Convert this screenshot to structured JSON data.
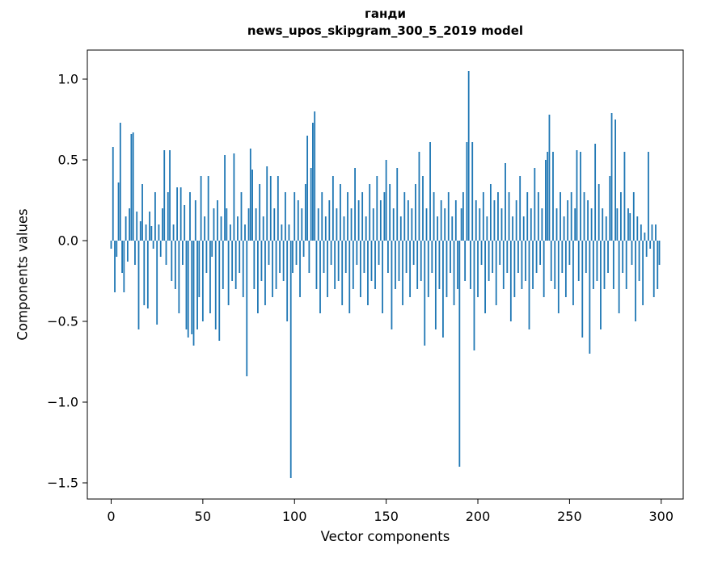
{
  "chart_data": {
    "type": "bar",
    "title_line1": "ганди",
    "title_line2": "news_upos_skipgram_300_5_2019 model",
    "xlabel": "Vector components",
    "ylabel": "Components values",
    "bar_color": "#1f77b4",
    "xlim": [
      -13,
      312
    ],
    "ylim": [
      -1.6,
      1.18
    ],
    "xticks": [
      0,
      50,
      100,
      150,
      200,
      250,
      300
    ],
    "yticks": [
      -1.5,
      -1.0,
      -0.5,
      0.0,
      0.5,
      1.0
    ],
    "grid": false,
    "legend": "none",
    "values": [
      -0.05,
      0.58,
      -0.32,
      -0.1,
      0.36,
      0.73,
      -0.2,
      -0.32,
      0.15,
      -0.13,
      0.2,
      0.66,
      0.67,
      -0.15,
      0.18,
      -0.55,
      0.12,
      0.35,
      -0.4,
      0.1,
      -0.42,
      0.18,
      0.09,
      -0.05,
      0.3,
      -0.52,
      0.1,
      -0.1,
      0.2,
      0.56,
      -0.15,
      0.3,
      0.56,
      -0.25,
      0.1,
      -0.3,
      0.33,
      -0.45,
      0.33,
      -0.15,
      0.22,
      -0.55,
      -0.6,
      0.3,
      -0.58,
      -0.65,
      0.25,
      -0.55,
      -0.35,
      0.4,
      -0.5,
      0.15,
      -0.2,
      0.4,
      -0.45,
      -0.1,
      0.2,
      -0.55,
      0.25,
      -0.62,
      0.15,
      -0.3,
      0.53,
      0.2,
      -0.4,
      0.1,
      -0.25,
      0.54,
      -0.3,
      0.15,
      -0.2,
      0.3,
      -0.35,
      0.1,
      -0.84,
      0.2,
      0.57,
      0.44,
      -0.3,
      0.2,
      -0.45,
      0.35,
      -0.25,
      0.15,
      -0.4,
      0.46,
      -0.15,
      0.4,
      -0.35,
      0.2,
      -0.3,
      0.4,
      -0.2,
      0.1,
      -0.25,
      0.3,
      -0.5,
      0.1,
      -1.47,
      -0.2,
      0.3,
      -0.15,
      0.25,
      -0.35,
      0.2,
      -0.1,
      0.35,
      0.65,
      -0.2,
      0.45,
      0.73,
      0.8,
      -0.3,
      0.2,
      -0.45,
      0.3,
      -0.2,
      0.15,
      -0.35,
      0.25,
      -0.15,
      0.4,
      -0.3,
      0.2,
      -0.25,
      0.35,
      -0.4,
      0.15,
      -0.2,
      0.3,
      -0.45,
      0.2,
      -0.3,
      0.45,
      -0.15,
      0.25,
      -0.35,
      0.3,
      -0.2,
      0.15,
      -0.4,
      0.35,
      -0.25,
      0.2,
      -0.3,
      0.4,
      -0.15,
      0.25,
      -0.45,
      0.3,
      0.5,
      -0.2,
      0.35,
      -0.55,
      0.2,
      -0.3,
      0.45,
      -0.25,
      0.15,
      -0.4,
      0.3,
      -0.2,
      0.25,
      -0.35,
      0.2,
      -0.15,
      0.35,
      -0.3,
      0.55,
      -0.25,
      0.4,
      -0.65,
      0.2,
      -0.35,
      0.61,
      -0.2,
      0.3,
      -0.55,
      0.15,
      -0.3,
      0.25,
      -0.6,
      0.2,
      -0.35,
      0.3,
      -0.2,
      0.15,
      -0.4,
      0.25,
      -0.3,
      -1.4,
      0.2,
      0.3,
      -0.25,
      0.61,
      1.05,
      -0.3,
      0.61,
      -0.68,
      0.25,
      -0.35,
      0.2,
      -0.15,
      0.3,
      -0.45,
      0.15,
      -0.25,
      0.35,
      -0.2,
      0.25,
      -0.4,
      0.3,
      -0.15,
      0.2,
      -0.3,
      0.48,
      -0.2,
      0.3,
      -0.5,
      0.15,
      -0.35,
      0.25,
      -0.2,
      0.4,
      -0.3,
      0.15,
      -0.25,
      0.3,
      -0.55,
      0.2,
      -0.3,
      0.45,
      -0.2,
      0.3,
      -0.15,
      0.2,
      -0.35,
      0.5,
      0.55,
      0.78,
      -0.25,
      0.55,
      -0.3,
      0.2,
      -0.45,
      0.3,
      -0.2,
      0.15,
      -0.35,
      0.25,
      -0.15,
      0.3,
      -0.4,
      0.2,
      0.56,
      -0.25,
      0.55,
      -0.6,
      0.3,
      -0.2,
      0.25,
      -0.7,
      0.2,
      -0.3,
      0.6,
      -0.25,
      0.35,
      -0.55,
      0.2,
      -0.3,
      0.15,
      -0.2,
      0.4,
      0.79,
      -0.3,
      0.75,
      0.2,
      -0.45,
      0.3,
      -0.2,
      0.55,
      -0.3,
      0.2,
      0.17,
      -0.15,
      0.3,
      -0.5,
      0.15,
      -0.25,
      0.1,
      -0.4,
      0.05,
      -0.1,
      0.55,
      -0.05,
      0.1,
      -0.35,
      0.1,
      -0.3,
      -0.15
    ]
  }
}
